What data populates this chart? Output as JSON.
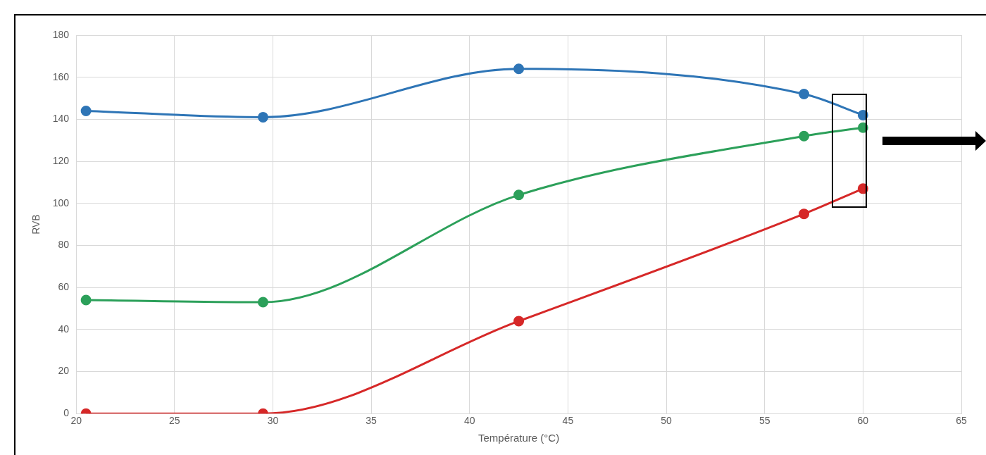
{
  "chart_data": {
    "type": "line",
    "xlabel": "Température (°C)",
    "ylabel": "RVB",
    "x": [
      20.5,
      29.5,
      42.5,
      57,
      60
    ],
    "series": [
      {
        "color": "#2e75b6",
        "values": [
          144,
          141,
          164,
          152,
          142
        ]
      },
      {
        "color": "#2ca05a",
        "values": [
          54,
          53,
          104,
          132,
          136
        ]
      },
      {
        "color": "#d62828",
        "values": [
          0,
          0,
          44,
          95,
          107
        ]
      }
    ],
    "xlim": [
      20,
      65
    ],
    "xticks": [
      20,
      25,
      30,
      35,
      40,
      45,
      50,
      55,
      60,
      65
    ],
    "ylim": [
      0,
      180
    ],
    "yticks": [
      0,
      20,
      40,
      60,
      80,
      100,
      120,
      140,
      160,
      180
    ],
    "grid": true,
    "legend": false,
    "marker": "circle",
    "line_style": "solid"
  }
}
